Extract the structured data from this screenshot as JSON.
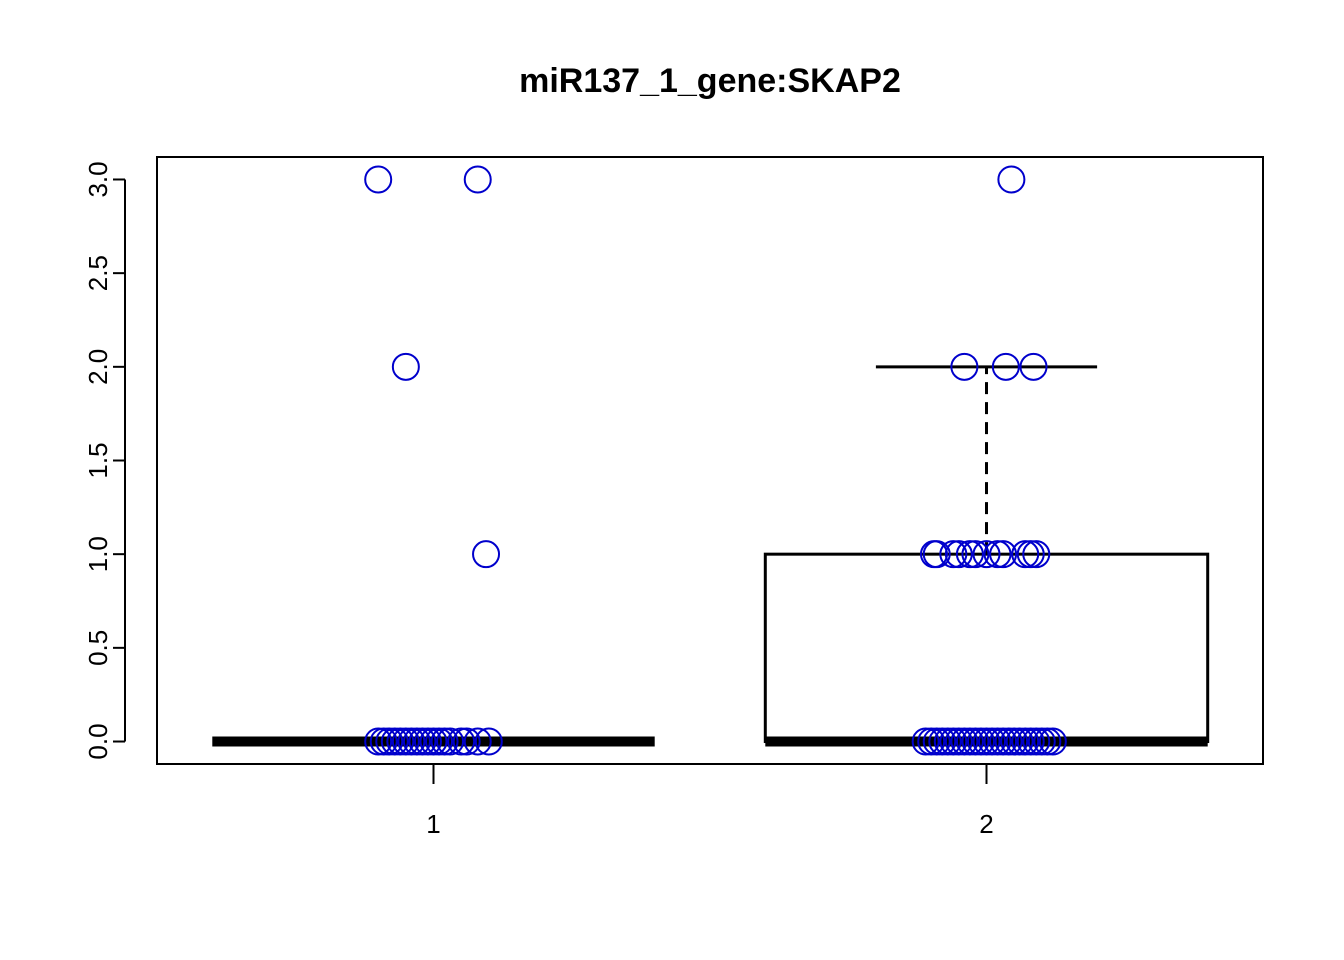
{
  "chart_data": {
    "type": "box",
    "title": "miR137_1_gene:SKAP2",
    "xlabel": "",
    "ylabel": "",
    "categories": [
      "1",
      "2"
    ],
    "ylim": [
      -0.12,
      3.12
    ],
    "yticks": [
      0.0,
      0.5,
      1.0,
      1.5,
      2.0,
      2.5,
      3.0
    ],
    "ytick_labels": [
      "0.0",
      "0.5",
      "1.0",
      "1.5",
      "2.0",
      "2.5",
      "3.0"
    ],
    "grid": false,
    "boxes": [
      {
        "category": "1",
        "min": 0,
        "q1": 0,
        "median": 0,
        "q3": 0,
        "max": 0
      },
      {
        "category": "2",
        "min": 0,
        "q1": 0,
        "median": 0,
        "q3": 1,
        "max": 2
      }
    ],
    "points": [
      {
        "category": "1",
        "values": [
          3,
          3,
          2,
          1,
          0,
          0,
          0,
          0,
          0,
          0,
          0,
          0,
          0,
          0,
          0,
          0,
          0,
          0,
          0,
          0,
          0,
          0
        ],
        "jitter": [
          -0.1,
          0.08,
          -0.05,
          0.095,
          -0.1,
          -0.09,
          -0.08,
          -0.07,
          -0.06,
          -0.05,
          -0.04,
          -0.03,
          -0.02,
          -0.01,
          0.0,
          0.01,
          0.02,
          0.03,
          0.05,
          0.06,
          0.08,
          0.1
        ]
      },
      {
        "category": "2",
        "values": [
          3,
          2,
          2,
          2,
          1,
          1,
          1,
          1,
          1,
          1,
          1,
          1,
          1,
          1,
          1,
          1,
          0,
          0,
          0,
          0,
          0,
          0,
          0,
          0,
          0,
          0,
          0,
          0,
          0,
          0,
          0,
          0,
          0,
          0,
          0,
          0,
          0,
          0,
          0,
          0
        ],
        "jitter": [
          0.045,
          -0.04,
          0.035,
          0.085,
          -0.095,
          -0.09,
          -0.06,
          -0.05,
          -0.03,
          -0.02,
          0.0,
          0.02,
          0.03,
          0.07,
          0.08,
          0.09,
          -0.11,
          -0.1,
          -0.09,
          -0.08,
          -0.07,
          -0.06,
          -0.05,
          -0.04,
          -0.03,
          -0.02,
          -0.01,
          0.0,
          0.01,
          0.02,
          0.03,
          0.04,
          0.05,
          0.06,
          0.07,
          0.08,
          0.09,
          0.1,
          0.11,
          0.12
        ]
      }
    ],
    "colors": {
      "points": "#0000cc",
      "box": "#000000"
    }
  }
}
